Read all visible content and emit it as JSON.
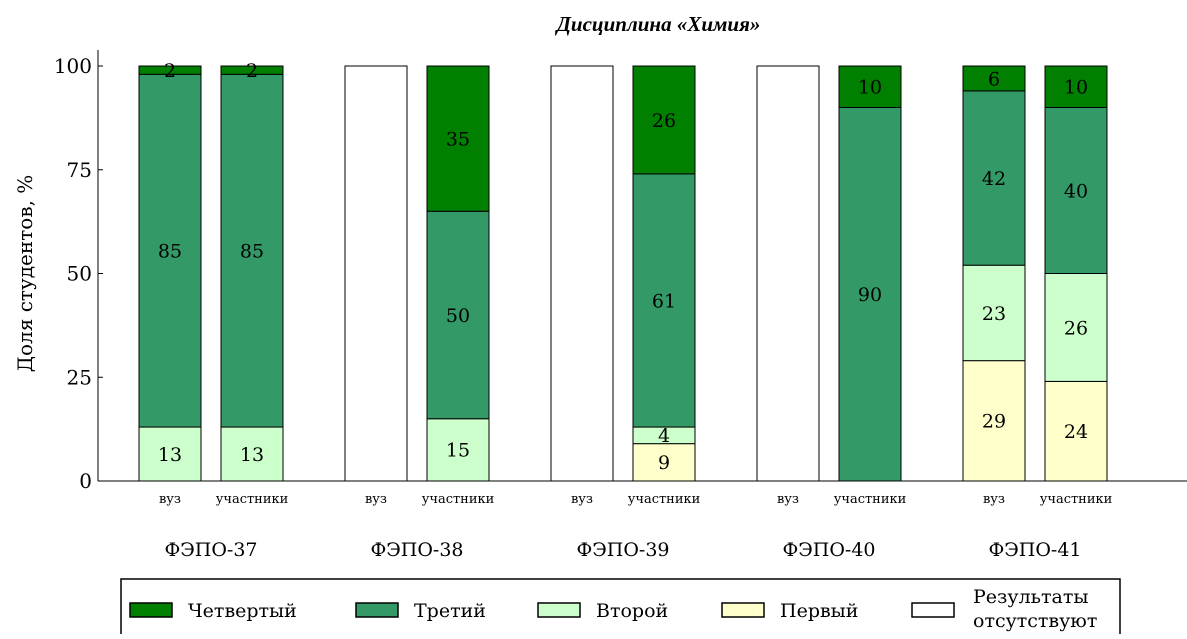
{
  "chart_data": {
    "type": "bar",
    "title": "Дисциплина «Химия»",
    "ylabel": "Доля студентов, %",
    "ylim": [
      0,
      100
    ],
    "yticks": [
      0,
      25,
      50,
      75,
      100
    ],
    "groups": [
      {
        "name": "ФЭПО-37",
        "bars": [
          {
            "label": "вуз",
            "no_results": false,
            "segments": [
              {
                "level": "Второй",
                "value": 13
              },
              {
                "level": "Третий",
                "value": 85
              },
              {
                "level": "Четвертый",
                "value": 2
              }
            ]
          },
          {
            "label": "участники",
            "no_results": false,
            "segments": [
              {
                "level": "Второй",
                "value": 13
              },
              {
                "level": "Третий",
                "value": 85
              },
              {
                "level": "Четвертый",
                "value": 2
              }
            ]
          }
        ]
      },
      {
        "name": "ФЭПО-38",
        "bars": [
          {
            "label": "вуз",
            "no_results": true,
            "segments": []
          },
          {
            "label": "участники",
            "no_results": false,
            "segments": [
              {
                "level": "Второй",
                "value": 15
              },
              {
                "level": "Третий",
                "value": 50
              },
              {
                "level": "Четвертый",
                "value": 35
              }
            ]
          }
        ]
      },
      {
        "name": "ФЭПО-39",
        "bars": [
          {
            "label": "вуз",
            "no_results": true,
            "segments": []
          },
          {
            "label": "участники",
            "no_results": false,
            "segments": [
              {
                "level": "Первый",
                "value": 9
              },
              {
                "level": "Второй",
                "value": 4
              },
              {
                "level": "Третий",
                "value": 61
              },
              {
                "level": "Четвертый",
                "value": 26
              }
            ]
          }
        ]
      },
      {
        "name": "ФЭПО-40",
        "bars": [
          {
            "label": "вуз",
            "no_results": true,
            "segments": []
          },
          {
            "label": "участники",
            "no_results": false,
            "segments": [
              {
                "level": "Третий",
                "value": 90
              },
              {
                "level": "Четвертый",
                "value": 10
              }
            ]
          }
        ]
      },
      {
        "name": "ФЭПО-41",
        "bars": [
          {
            "label": "вуз",
            "no_results": false,
            "segments": [
              {
                "level": "Первый",
                "value": 29
              },
              {
                "level": "Второй",
                "value": 23
              },
              {
                "level": "Третий",
                "value": 42
              },
              {
                "level": "Четвертый",
                "value": 6
              }
            ]
          },
          {
            "label": "участники",
            "no_results": false,
            "segments": [
              {
                "level": "Первый",
                "value": 24
              },
              {
                "level": "Второй",
                "value": 26
              },
              {
                "level": "Третий",
                "value": 40
              },
              {
                "level": "Четвертый",
                "value": 10
              }
            ]
          }
        ]
      }
    ],
    "legend": {
      "position": "bottom",
      "items": [
        {
          "name": "Четвертый",
          "color": "#007f00"
        },
        {
          "name": "Третий",
          "color": "#339966"
        },
        {
          "name": "Второй",
          "color": "#ccffcc"
        },
        {
          "name": "Первый",
          "color": "#ffffcc"
        },
        {
          "name": "Результаты отсутствуют",
          "color": "#ffffff"
        }
      ]
    },
    "grid": false
  }
}
